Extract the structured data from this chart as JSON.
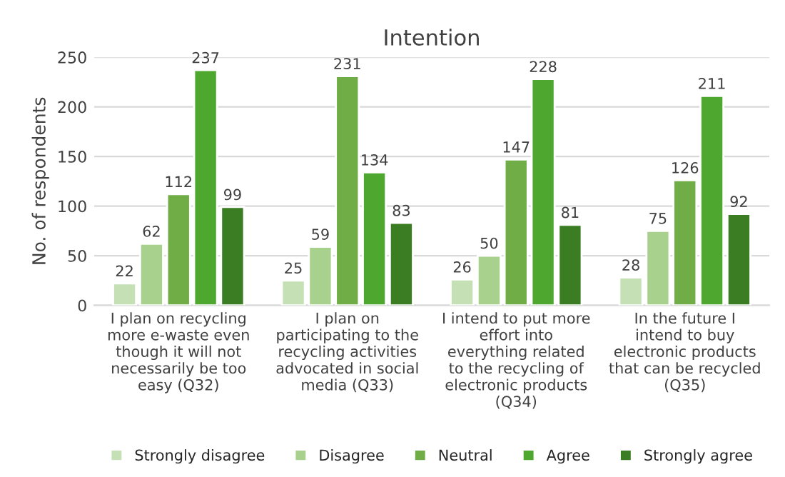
{
  "chart_data": {
    "type": "bar",
    "title": "Intention",
    "ylabel": "No. of respondents",
    "categories": [
      "I plan on recycling\nmore e-waste even\nthough it will not\nnecessarily be too\neasy (Q32)",
      "I plan on\nparticipating to the\nrecycling activities\nadvocated in social\nmedia (Q33)",
      "I intend to put more\neffort into\neverything related\nto the recycling of\nelectronic products\n(Q34)",
      "In the future I\nintend to buy\nelectronic products\nthat can be recycled\n(Q35)"
    ],
    "series": [
      {
        "name": "Strongly disagree",
        "color": "#c5e0b4",
        "values": [
          22,
          25,
          26,
          28
        ]
      },
      {
        "name": "Disagree",
        "color": "#a9d18e",
        "values": [
          62,
          59,
          50,
          75
        ]
      },
      {
        "name": "Neutral",
        "color": "#70ad47",
        "values": [
          112,
          231,
          147,
          126
        ]
      },
      {
        "name": "Agree",
        "color": "#4ea72e",
        "values": [
          237,
          134,
          228,
          211
        ]
      },
      {
        "name": "Strongly agree",
        "color": "#3a7d22",
        "values": [
          99,
          83,
          81,
          92
        ]
      }
    ],
    "ylim": [
      0,
      250
    ],
    "yticks": [
      0,
      50,
      100,
      150,
      200,
      250
    ],
    "grid": "y",
    "legend": "bottom",
    "data_labels": true
  }
}
